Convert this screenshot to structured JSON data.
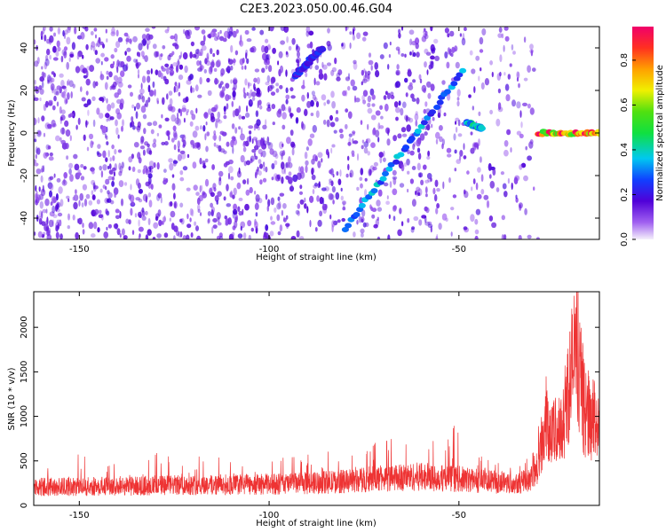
{
  "title": "C2E3.2023.050.00.46.G04",
  "colors": {
    "snr_line": "#ee3333",
    "spectrogram_scatter": "#7a2ef0",
    "background": "#ffffff"
  },
  "chart_data": [
    {
      "type": "heatmap",
      "title": "C2E3.2023.050.00.46.G04",
      "xlabel": "Height of straight line (km)",
      "ylabel": "Frequency (Hz)",
      "xlim": [
        -162,
        -13
      ],
      "ylim": [
        -50,
        50
      ],
      "xticks": [
        -150,
        -100,
        -50
      ],
      "yticks": [
        -40,
        -20,
        0,
        20,
        40
      ],
      "colorbar": {
        "label": "Normalized spectral amplitude",
        "range": [
          0,
          0.95
        ],
        "ticks": [
          0.0,
          0.2,
          0.4,
          0.6,
          0.8
        ],
        "tick_labels": [
          "0.0",
          "0.2",
          "0.4",
          "0.6",
          "0.8"
        ],
        "colormap": "rainbow (purple → red)"
      },
      "features": [
        {
          "name": "steep line",
          "x": [
            -80,
            -49
          ],
          "y": [
            -45,
            29
          ],
          "amplitude": 0.35
        },
        {
          "name": "upper diagonal",
          "x": [
            -93,
            -86
          ],
          "y": [
            27,
            40
          ],
          "amplitude": 0.25
        },
        {
          "name": "short segment",
          "x": [
            -48,
            -44
          ],
          "y": [
            5,
            2
          ],
          "amplitude": 0.4
        },
        {
          "name": "near-zero trace",
          "x": [
            -29,
            -13
          ],
          "y": [
            0,
            0
          ],
          "amplitude": 0.85
        }
      ]
    },
    {
      "type": "line",
      "xlabel": "Height of straight line (km)",
      "ylabel": "SNR (10 * v/v)",
      "xlim": [
        -162,
        -13
      ],
      "ylim": [
        0,
        2400
      ],
      "xticks": [
        -150,
        -100,
        -50
      ],
      "yticks": [
        0,
        500,
        1000,
        1500,
        2000
      ],
      "series": [
        {
          "x": [
            -162,
            -150,
            -140,
            -130,
            -120,
            -110,
            -100,
            -90,
            -80,
            -70,
            -60,
            -50,
            -40,
            -32,
            -29,
            -27,
            -25,
            -23,
            -21,
            -19,
            -17,
            -15,
            -13
          ],
          "y": [
            230,
            235,
            240,
            250,
            255,
            260,
            265,
            275,
            300,
            340,
            360,
            330,
            290,
            300,
            500,
            1100,
            900,
            950,
            1500,
            2000,
            1200,
            1100,
            1000
          ],
          "peak_y": [
            420,
            600,
            560,
            600,
            560,
            540,
            560,
            580,
            660,
            760,
            720,
            920,
            520,
            540,
            900,
            1400,
            1150,
            1250,
            2000,
            2400,
            1600,
            1450,
            1500
          ]
        }
      ]
    }
  ]
}
